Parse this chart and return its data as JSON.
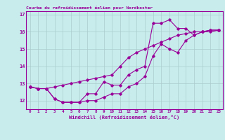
{
  "title": "Courbe du refroidissement éolien pour Nordkoster",
  "xlabel": "Windchill (Refroidissement éolien,°C)",
  "bg_color": "#c8ecec",
  "line_color": "#990099",
  "grid_color": "#aacccc",
  "yticks": [
    12,
    13,
    14,
    15,
    16,
    17
  ],
  "xticks": [
    0,
    1,
    2,
    3,
    4,
    5,
    6,
    7,
    8,
    9,
    10,
    11,
    12,
    13,
    14,
    15,
    16,
    17,
    18,
    19,
    20,
    21,
    22,
    23
  ],
  "ylim": [
    11.5,
    17.2
  ],
  "xlim": [
    -0.5,
    23.5
  ],
  "series1_x": [
    0,
    1,
    2,
    3,
    4,
    5,
    6,
    7,
    8,
    9,
    10,
    11,
    12,
    13,
    14,
    15,
    16,
    17,
    18,
    19,
    20,
    21,
    22,
    23
  ],
  "series1_y": [
    12.8,
    12.7,
    12.7,
    12.1,
    11.9,
    11.9,
    11.9,
    12.4,
    12.4,
    13.1,
    12.9,
    12.9,
    13.5,
    13.8,
    14.0,
    16.5,
    16.5,
    16.7,
    16.2,
    16.2,
    15.8,
    16.0,
    16.1,
    16.1
  ],
  "series2_x": [
    0,
    1,
    2,
    3,
    4,
    5,
    6,
    7,
    8,
    9,
    10,
    11,
    12,
    13,
    14,
    15,
    16,
    17,
    18,
    19,
    20,
    21,
    22,
    23
  ],
  "series2_y": [
    12.8,
    12.7,
    12.7,
    12.1,
    11.9,
    11.9,
    11.9,
    12.0,
    12.0,
    12.2,
    12.4,
    12.4,
    12.8,
    13.0,
    13.4,
    14.6,
    15.3,
    15.0,
    14.8,
    15.5,
    15.8,
    16.0,
    16.0,
    16.1
  ],
  "series3_x": [
    0,
    1,
    2,
    3,
    4,
    5,
    6,
    7,
    8,
    9,
    10,
    11,
    12,
    13,
    14,
    15,
    16,
    17,
    18,
    19,
    20,
    21,
    22,
    23
  ],
  "series3_y": [
    12.8,
    12.7,
    12.7,
    12.8,
    12.9,
    13.0,
    13.1,
    13.2,
    13.3,
    13.4,
    13.5,
    14.0,
    14.5,
    14.8,
    15.0,
    15.2,
    15.4,
    15.6,
    15.8,
    15.9,
    16.0,
    16.0,
    16.1,
    16.1
  ]
}
